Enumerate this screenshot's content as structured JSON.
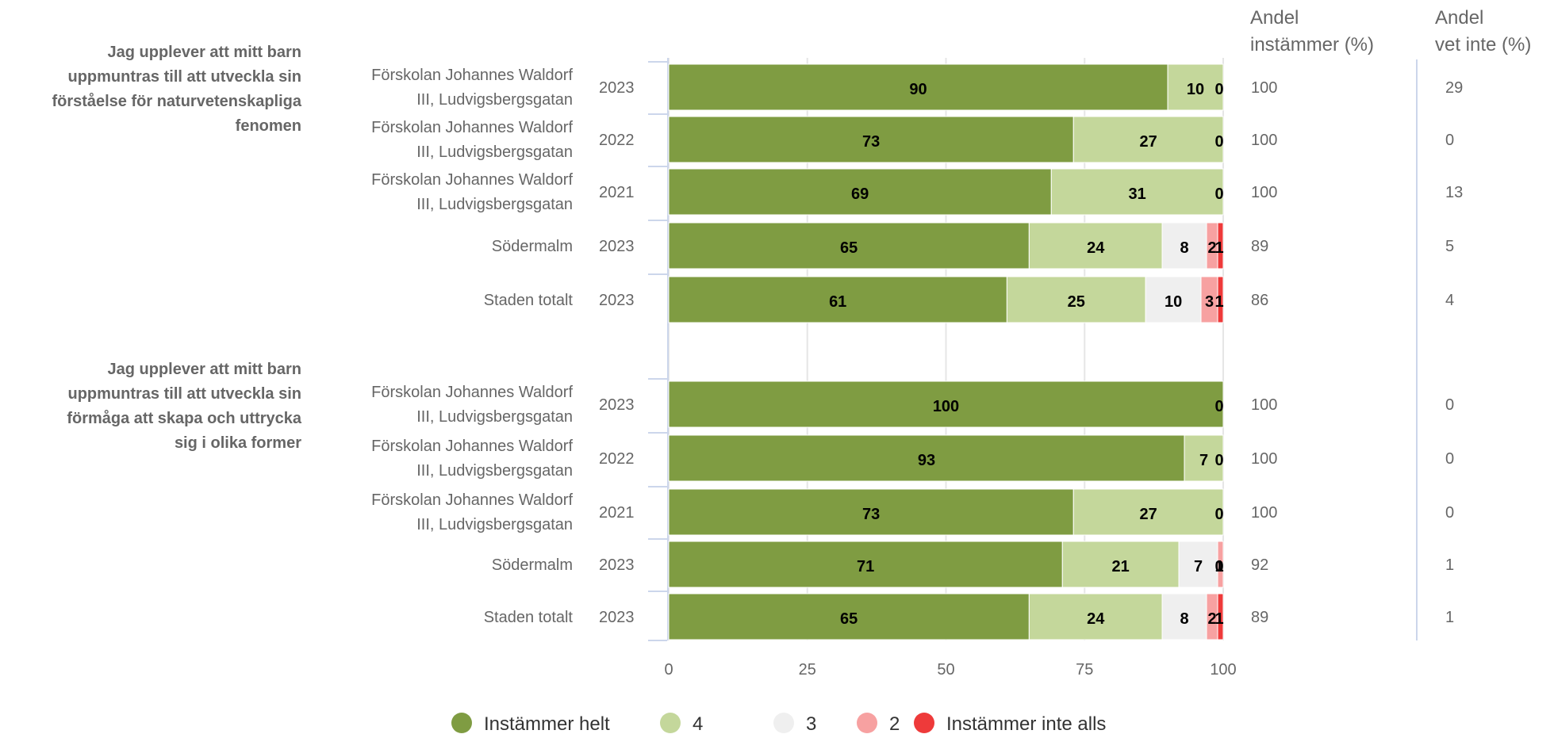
{
  "chart_data": {
    "type": "bar",
    "orientation": "horizontal",
    "stacked": true,
    "xlim": [
      0,
      100
    ],
    "x_ticks": [
      0,
      25,
      50,
      75,
      100
    ],
    "grid": true,
    "legend_position": "bottom",
    "categories": [
      "Instämmer helt",
      "4",
      "3",
      "2",
      "Instämmer inte alls"
    ],
    "colors": [
      "#7f9c42",
      "#c4d79b",
      "#efefef",
      "#f7a1a1",
      "#ee3a3a"
    ],
    "column_headers": {
      "andel_instammer": [
        "Andel",
        "instämmer (%)"
      ],
      "andel_vet_inte": [
        "Andel",
        "vet inte (%)"
      ]
    },
    "groups": [
      {
        "title_lines": [
          "Jag upplever att mitt barn",
          "uppmuntras till att utveckla sin",
          "förståelse för naturvetenskapliga",
          "fenomen"
        ],
        "rows": [
          {
            "label_lines": [
              "Förskolan Johannes Waldorf",
              "III, Ludvigsbergsgatan"
            ],
            "year": "2023",
            "values": [
              90,
              10,
              0,
              0,
              0
            ],
            "labels": [
              "90",
              "10",
              "0",
              "",
              ""
            ],
            "andel_instammer": "100",
            "andel_vet_inte": "29"
          },
          {
            "label_lines": [
              "Förskolan Johannes Waldorf",
              "III, Ludvigsbergsgatan"
            ],
            "year": "2022",
            "values": [
              73,
              27,
              0,
              0,
              0
            ],
            "labels": [
              "73",
              "27",
              "0",
              "",
              ""
            ],
            "andel_instammer": "100",
            "andel_vet_inte": "0"
          },
          {
            "label_lines": [
              "Förskolan Johannes Waldorf",
              "III, Ludvigsbergsgatan"
            ],
            "year": "2021",
            "values": [
              69,
              31,
              0,
              0,
              0
            ],
            "labels": [
              "69",
              "31",
              "0",
              "",
              ""
            ],
            "andel_instammer": "100",
            "andel_vet_inte": "13"
          },
          {
            "label_lines": [
              "Södermalm"
            ],
            "year": "2023",
            "values": [
              65,
              24,
              8,
              2,
              1
            ],
            "labels": [
              "65",
              "24",
              "8",
              "2",
              "1"
            ],
            "andel_instammer": "89",
            "andel_vet_inte": "5"
          },
          {
            "label_lines": [
              "Staden totalt"
            ],
            "year": "2023",
            "values": [
              61,
              25,
              10,
              3,
              1
            ],
            "labels": [
              "61",
              "25",
              "10",
              "3",
              "1"
            ],
            "andel_instammer": "86",
            "andel_vet_inte": "4"
          }
        ]
      },
      {
        "title_lines": [
          "Jag upplever att mitt barn",
          "uppmuntras till att utveckla sin",
          "förmåga att skapa och uttrycka",
          "sig i olika former"
        ],
        "rows": [
          {
            "label_lines": [
              "Förskolan Johannes Waldorf",
              "III, Ludvigsbergsgatan"
            ],
            "year": "2023",
            "values": [
              100,
              0,
              0,
              0,
              0
            ],
            "labels": [
              "100",
              "0",
              "",
              "",
              ""
            ],
            "andel_instammer": "100",
            "andel_vet_inte": "0"
          },
          {
            "label_lines": [
              "Förskolan Johannes Waldorf",
              "III, Ludvigsbergsgatan"
            ],
            "year": "2022",
            "values": [
              93,
              7,
              0,
              0,
              0
            ],
            "labels": [
              "93",
              "7",
              "0",
              "",
              ""
            ],
            "andel_instammer": "100",
            "andel_vet_inte": "0"
          },
          {
            "label_lines": [
              "Förskolan Johannes Waldorf",
              "III, Ludvigsbergsgatan"
            ],
            "year": "2021",
            "values": [
              73,
              27,
              0,
              0,
              0
            ],
            "labels": [
              "73",
              "27",
              "0",
              "",
              ""
            ],
            "andel_instammer": "100",
            "andel_vet_inte": "0"
          },
          {
            "label_lines": [
              "Södermalm"
            ],
            "year": "2023",
            "values": [
              71,
              21,
              7,
              1,
              0
            ],
            "labels": [
              "71",
              "21",
              "7",
              "1",
              "0"
            ],
            "andel_instammer": "92",
            "andel_vet_inte": "1"
          },
          {
            "label_lines": [
              "Staden totalt"
            ],
            "year": "2023",
            "values": [
              65,
              24,
              8,
              2,
              1
            ],
            "labels": [
              "65",
              "24",
              "8",
              "2",
              "1"
            ],
            "andel_instammer": "89",
            "andel_vet_inte": "1"
          }
        ]
      }
    ]
  }
}
